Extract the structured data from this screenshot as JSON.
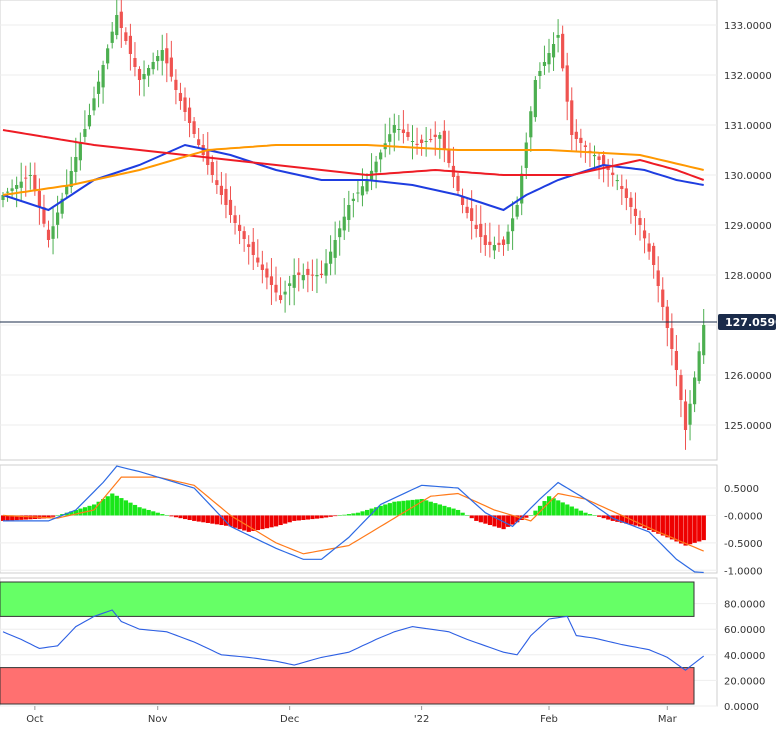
{
  "price_badge": {
    "value": "127.0590"
  },
  "x_axis": {
    "labels": [
      "Oct",
      "Nov",
      "Dec",
      "'22",
      "Feb",
      "Mar"
    ]
  },
  "colors": {
    "background": "#ffffff",
    "grid": "#eeeeee",
    "up_candle": "#4caf50",
    "down_candle": "#ef5350",
    "sma_fast": "#1e3de0",
    "sma_mid": "#ee1c25",
    "sma_slow": "#ff9800",
    "macd_line": "#2d6ae3",
    "macd_signal": "#ff7a1a",
    "hist_pos": "#19e619",
    "hist_neg": "#ee0000",
    "rsi_line": "#2d5fe3",
    "rsi_overbought_zone": "#66ff66",
    "rsi_oversold_zone": "#ff7070",
    "badge_bg": "#1a2b4a"
  },
  "chart_data": [
    {
      "type": "candlestick",
      "panel": "price",
      "y_ticks": [
        "133.0000",
        "132.0000",
        "131.0000",
        "130.0000",
        "129.0000",
        "128.0000",
        "127.0000",
        "126.0000",
        "125.0000"
      ],
      "ylim": [
        124.3,
        133.5
      ],
      "current_value": 127.059,
      "series": [
        {
          "name": "",
          "kind": "ohlc",
          "keypoints": [
            [
              0,
              129.6
            ],
            [
              6,
              130.0
            ],
            [
              10,
              128.7
            ],
            [
              14,
              129.8
            ],
            [
              19,
              131.2
            ],
            [
              25,
              133.2
            ],
            [
              30,
              131.9
            ],
            [
              35,
              132.5
            ],
            [
              38,
              131.7
            ],
            [
              43,
              130.6
            ],
            [
              50,
              129.2
            ],
            [
              55,
              128.4
            ],
            [
              61,
              127.5
            ],
            [
              64,
              128.0
            ],
            [
              70,
              128.0
            ],
            [
              76,
              129.4
            ],
            [
              80,
              129.9
            ],
            [
              86,
              131.0
            ],
            [
              91,
              130.6
            ],
            [
              96,
              130.8
            ],
            [
              101,
              129.4
            ],
            [
              106,
              128.6
            ],
            [
              110,
              128.6
            ],
            [
              113,
              129.4
            ],
            [
              117,
              131.9
            ],
            [
              122,
              132.8
            ],
            [
              125,
              130.8
            ],
            [
              130,
              130.4
            ],
            [
              135,
              129.9
            ],
            [
              140,
              129.0
            ],
            [
              143,
              128.2
            ],
            [
              148,
              126.1
            ],
            [
              150,
              124.9
            ],
            [
              154,
              127.0
            ]
          ]
        },
        {
          "name": "",
          "kind": "sma-fast",
          "keypoints": [
            [
              0,
              129.6
            ],
            [
              10,
              129.3
            ],
            [
              20,
              129.9
            ],
            [
              30,
              130.2
            ],
            [
              40,
              130.6
            ],
            [
              50,
              130.4
            ],
            [
              60,
              130.1
            ],
            [
              70,
              129.9
            ],
            [
              80,
              129.9
            ],
            [
              90,
              129.8
            ],
            [
              100,
              129.6
            ],
            [
              110,
              129.3
            ],
            [
              115,
              129.6
            ],
            [
              122,
              129.9
            ],
            [
              132,
              130.2
            ],
            [
              141,
              130.1
            ],
            [
              148,
              129.9
            ],
            [
              154,
              129.8
            ]
          ]
        },
        {
          "name": "",
          "kind": "sma-mid",
          "keypoints": [
            [
              0,
              130.9
            ],
            [
              20,
              130.6
            ],
            [
              40,
              130.4
            ],
            [
              60,
              130.2
            ],
            [
              80,
              130.0
            ],
            [
              95,
              130.1
            ],
            [
              110,
              130.0
            ],
            [
              125,
              130.0
            ],
            [
              140,
              130.3
            ],
            [
              148,
              130.1
            ],
            [
              154,
              129.9
            ]
          ]
        },
        {
          "name": "",
          "kind": "sma-slow",
          "keypoints": [
            [
              0,
              129.6
            ],
            [
              15,
              129.8
            ],
            [
              30,
              130.1
            ],
            [
              45,
              130.5
            ],
            [
              60,
              130.6
            ],
            [
              80,
              130.6
            ],
            [
              100,
              130.5
            ],
            [
              120,
              130.5
            ],
            [
              140,
              130.4
            ],
            [
              154,
              130.1
            ]
          ]
        }
      ]
    },
    {
      "type": "macd",
      "panel": "macd",
      "y_ticks": [
        "0.5000",
        "-0.0000",
        "-0.5000",
        "-1.0000"
      ],
      "ylim": [
        -1.05,
        0.92
      ],
      "series": [
        {
          "name": "",
          "kind": "macd",
          "keypoints": [
            [
              0,
              -0.1
            ],
            [
              10,
              -0.1
            ],
            [
              16,
              0.1
            ],
            [
              22,
              0.6
            ],
            [
              25,
              0.9
            ],
            [
              30,
              0.8
            ],
            [
              36,
              0.65
            ],
            [
              42,
              0.5
            ],
            [
              50,
              -0.2
            ],
            [
              60,
              -0.6
            ],
            [
              66,
              -0.8
            ],
            [
              70,
              -0.8
            ],
            [
              76,
              -0.4
            ],
            [
              83,
              0.2
            ],
            [
              92,
              0.55
            ],
            [
              100,
              0.5
            ],
            [
              106,
              0.05
            ],
            [
              112,
              -0.2
            ],
            [
              118,
              0.3
            ],
            [
              122,
              0.6
            ],
            [
              128,
              0.3
            ],
            [
              134,
              -0.05
            ],
            [
              142,
              -0.3
            ],
            [
              148,
              -0.8
            ],
            [
              152,
              -1.03
            ],
            [
              154,
              -1.04
            ]
          ]
        },
        {
          "name": "",
          "kind": "signal",
          "keypoints": [
            [
              0,
              0.0
            ],
            [
              12,
              -0.05
            ],
            [
              20,
              0.1
            ],
            [
              26,
              0.7
            ],
            [
              34,
              0.7
            ],
            [
              42,
              0.55
            ],
            [
              50,
              0.0
            ],
            [
              60,
              -0.5
            ],
            [
              66,
              -0.7
            ],
            [
              76,
              -0.55
            ],
            [
              85,
              -0.1
            ],
            [
              94,
              0.35
            ],
            [
              100,
              0.4
            ],
            [
              108,
              0.1
            ],
            [
              116,
              -0.1
            ],
            [
              122,
              0.4
            ],
            [
              128,
              0.3
            ],
            [
              136,
              0.0
            ],
            [
              144,
              -0.3
            ],
            [
              154,
              -0.65
            ]
          ]
        },
        {
          "name": "",
          "kind": "histogram",
          "keypoints": [
            [
              0,
              -0.1
            ],
            [
              10,
              -0.05
            ],
            [
              20,
              0.2
            ],
            [
              24,
              0.4
            ],
            [
              30,
              0.15
            ],
            [
              36,
              0.0
            ],
            [
              42,
              -0.1
            ],
            [
              50,
              -0.2
            ],
            [
              54,
              -0.3
            ],
            [
              60,
              -0.2
            ],
            [
              64,
              -0.1
            ],
            [
              70,
              -0.05
            ],
            [
              78,
              0.05
            ],
            [
              86,
              0.25
            ],
            [
              92,
              0.3
            ],
            [
              100,
              0.1
            ],
            [
              104,
              -0.1
            ],
            [
              110,
              -0.25
            ],
            [
              116,
              0.0
            ],
            [
              120,
              0.35
            ],
            [
              124,
              0.2
            ],
            [
              128,
              0.05
            ],
            [
              134,
              -0.1
            ],
            [
              140,
              -0.2
            ],
            [
              146,
              -0.4
            ],
            [
              150,
              -0.55
            ],
            [
              154,
              -0.45
            ]
          ]
        }
      ]
    },
    {
      "type": "line",
      "panel": "rsi",
      "y_ticks": [
        "80.0000",
        "60.0000",
        "40.0000",
        "20.0000",
        "0.0000"
      ],
      "ylim": [
        0,
        100
      ],
      "overbought": 70,
      "oversold": 30,
      "series": [
        {
          "name": "",
          "kind": "rsi",
          "keypoints": [
            [
              0,
              58
            ],
            [
              4,
              52
            ],
            [
              8,
              45
            ],
            [
              12,
              47
            ],
            [
              16,
              62
            ],
            [
              20,
              70
            ],
            [
              24,
              75
            ],
            [
              26,
              66
            ],
            [
              30,
              60
            ],
            [
              36,
              58
            ],
            [
              42,
              50
            ],
            [
              48,
              40
            ],
            [
              54,
              38
            ],
            [
              60,
              35
            ],
            [
              64,
              32
            ],
            [
              70,
              38
            ],
            [
              76,
              42
            ],
            [
              82,
              52
            ],
            [
              86,
              58
            ],
            [
              90,
              62
            ],
            [
              94,
              60
            ],
            [
              98,
              58
            ],
            [
              102,
              52
            ],
            [
              106,
              47
            ],
            [
              110,
              42
            ],
            [
              113,
              40
            ],
            [
              116,
              55
            ],
            [
              120,
              68
            ],
            [
              124,
              70
            ],
            [
              126,
              55
            ],
            [
              130,
              53
            ],
            [
              136,
              48
            ],
            [
              142,
              44
            ],
            [
              146,
              38
            ],
            [
              150,
              28
            ],
            [
              154,
              39
            ]
          ]
        }
      ]
    }
  ]
}
